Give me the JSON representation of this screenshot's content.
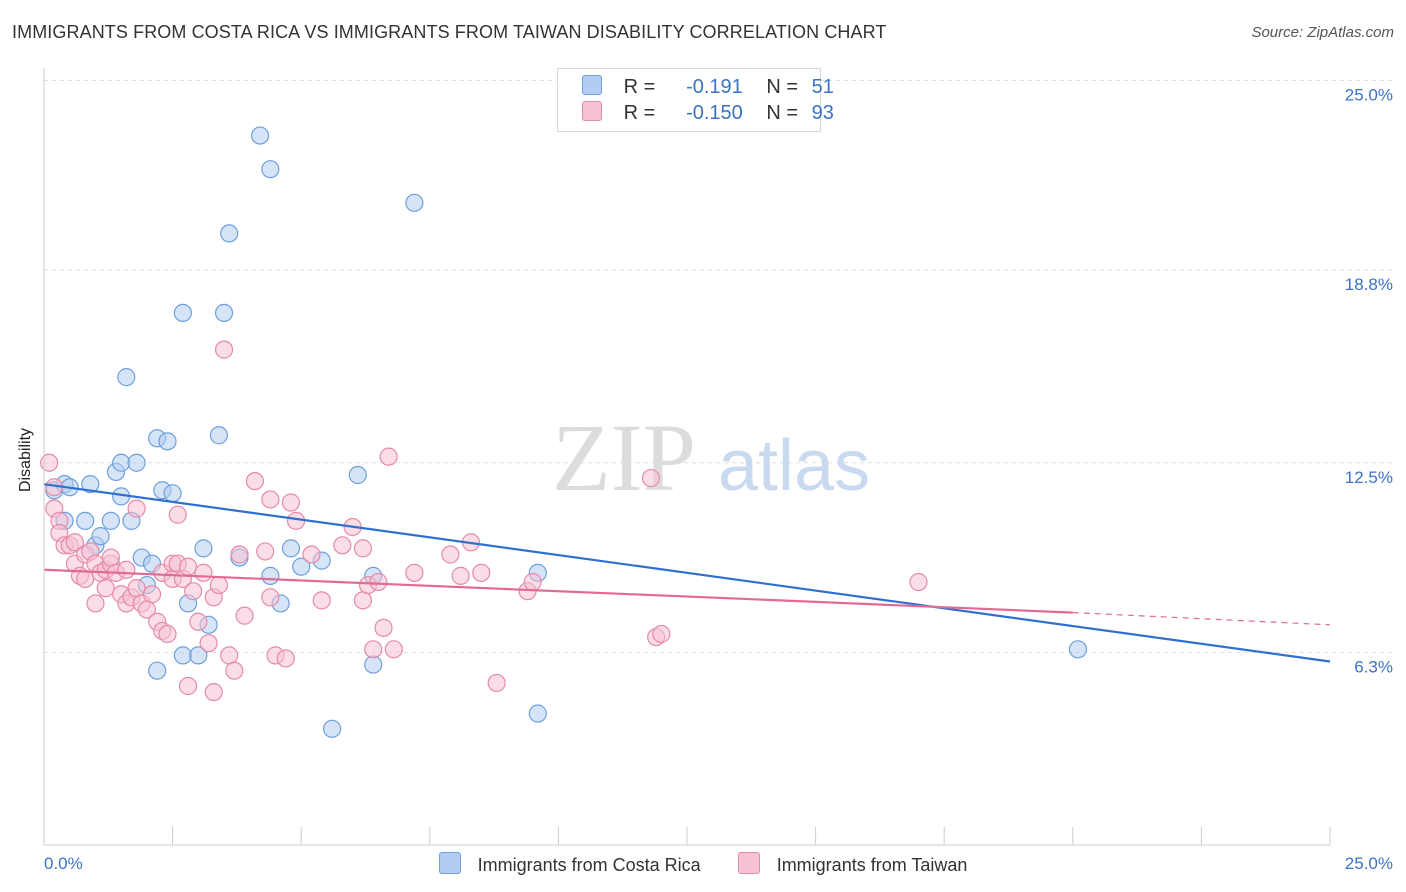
{
  "title": "IMMIGRANTS FROM COSTA RICA VS IMMIGRANTS FROM TAIWAN DISABILITY CORRELATION CHART",
  "source": "Source: ZipAtlas.com",
  "watermark": {
    "zip": "ZIP",
    "atlas": "atlas"
  },
  "legend": {
    "rows": [
      {
        "r_label": "R =",
        "r_value": "-0.191",
        "n_label": "N =",
        "n_value": "51"
      },
      {
        "r_label": "R =",
        "r_value": "-0.150",
        "n_label": "N =",
        "n_value": "93"
      }
    ]
  },
  "colors": {
    "blue_fill": "#b3cdf1",
    "blue_stroke": "#6f9fdc",
    "blue_line": "#2f6fd0",
    "pink_fill": "#f6c1d3",
    "pink_stroke": "#e58aab",
    "pink_line": "#e26b96",
    "tick_text": "#3b73c4",
    "grid": "#dddddd"
  },
  "chart_data": {
    "type": "scatter",
    "title": "IMMIGRANTS FROM COSTA RICA VS IMMIGRANTS FROM TAIWAN DISABILITY CORRELATION CHART",
    "xlabel": "",
    "ylabel": "Disability",
    "xlim": [
      0,
      25
    ],
    "ylim": [
      0,
      25
    ],
    "x_tick_labels": [
      "0.0%",
      "25.0%"
    ],
    "y_tick_labels": [
      "6.3%",
      "12.5%",
      "18.8%",
      "25.0%"
    ],
    "y_ticks": [
      6.3,
      12.5,
      18.8,
      25.0
    ],
    "grid": true,
    "legend_position": "bottom",
    "series": [
      {
        "name": "Immigrants from Costa Rica",
        "color": "#6f9fdc",
        "trend": {
          "x": [
            0,
            25
          ],
          "y": [
            11.8,
            6.0
          ]
        },
        "points": [
          [
            0.2,
            11.6
          ],
          [
            0.4,
            11.8
          ],
          [
            0.5,
            11.7
          ],
          [
            0.4,
            10.6
          ],
          [
            0.8,
            10.6
          ],
          [
            0.9,
            11.8
          ],
          [
            1.0,
            9.8
          ],
          [
            1.1,
            10.1
          ],
          [
            1.3,
            10.6
          ],
          [
            1.4,
            12.2
          ],
          [
            1.5,
            12.5
          ],
          [
            1.5,
            11.4
          ],
          [
            1.6,
            15.3
          ],
          [
            1.7,
            10.6
          ],
          [
            1.8,
            12.5
          ],
          [
            1.9,
            9.4
          ],
          [
            2.0,
            8.5
          ],
          [
            2.1,
            9.2
          ],
          [
            2.2,
            13.3
          ],
          [
            2.2,
            5.7
          ],
          [
            2.3,
            11.6
          ],
          [
            2.4,
            13.2
          ],
          [
            2.5,
            11.5
          ],
          [
            2.7,
            6.2
          ],
          [
            2.7,
            17.4
          ],
          [
            2.8,
            7.9
          ],
          [
            3.0,
            6.2
          ],
          [
            3.1,
            9.7
          ],
          [
            3.2,
            7.2
          ],
          [
            3.4,
            13.4
          ],
          [
            3.5,
            17.4
          ],
          [
            3.6,
            20.0
          ],
          [
            3.8,
            9.4
          ],
          [
            4.2,
            23.2
          ],
          [
            4.4,
            22.1
          ],
          [
            4.4,
            8.8
          ],
          [
            4.6,
            7.9
          ],
          [
            4.8,
            9.7
          ],
          [
            5.0,
            9.1
          ],
          [
            5.4,
            9.3
          ],
          [
            5.6,
            3.8
          ],
          [
            6.1,
            12.1
          ],
          [
            6.4,
            8.8
          ],
          [
            6.4,
            5.9
          ],
          [
            7.2,
            21.0
          ],
          [
            9.6,
            8.9
          ],
          [
            9.6,
            4.3
          ],
          [
            20.1,
            6.4
          ]
        ]
      },
      {
        "name": "Immigrants from Taiwan",
        "color": "#e58aab",
        "trend": {
          "x": [
            0,
            20
          ],
          "y": [
            9.0,
            7.6
          ]
        },
        "trend_dashed": {
          "x": [
            20,
            25
          ],
          "y": [
            7.6,
            7.2
          ]
        },
        "points": [
          [
            0.1,
            12.5
          ],
          [
            0.2,
            11.7
          ],
          [
            0.2,
            11.0
          ],
          [
            0.3,
            10.6
          ],
          [
            0.3,
            10.2
          ],
          [
            0.4,
            9.8
          ],
          [
            0.5,
            9.8
          ],
          [
            0.6,
            9.9
          ],
          [
            0.6,
            9.2
          ],
          [
            0.7,
            8.8
          ],
          [
            0.8,
            9.5
          ],
          [
            0.8,
            8.7
          ],
          [
            0.9,
            9.6
          ],
          [
            1.0,
            7.9
          ],
          [
            1.0,
            9.2
          ],
          [
            1.1,
            8.9
          ],
          [
            1.2,
            9.0
          ],
          [
            1.2,
            8.4
          ],
          [
            1.3,
            9.2
          ],
          [
            1.3,
            9.4
          ],
          [
            1.4,
            8.9
          ],
          [
            1.5,
            8.2
          ],
          [
            1.6,
            7.9
          ],
          [
            1.6,
            9.0
          ],
          [
            1.7,
            8.1
          ],
          [
            1.8,
            8.4
          ],
          [
            1.8,
            11.0
          ],
          [
            1.9,
            7.9
          ],
          [
            2.0,
            7.7
          ],
          [
            2.1,
            8.2
          ],
          [
            2.2,
            7.3
          ],
          [
            2.3,
            7.0
          ],
          [
            2.3,
            8.9
          ],
          [
            2.4,
            6.9
          ],
          [
            2.5,
            9.2
          ],
          [
            2.5,
            8.7
          ],
          [
            2.6,
            9.2
          ],
          [
            2.6,
            10.8
          ],
          [
            2.7,
            8.7
          ],
          [
            2.8,
            5.2
          ],
          [
            2.8,
            9.1
          ],
          [
            2.9,
            8.3
          ],
          [
            3.0,
            7.3
          ],
          [
            3.1,
            8.9
          ],
          [
            3.2,
            6.6
          ],
          [
            3.3,
            5.0
          ],
          [
            3.3,
            8.1
          ],
          [
            3.4,
            8.5
          ],
          [
            3.5,
            16.2
          ],
          [
            3.6,
            6.2
          ],
          [
            3.7,
            5.7
          ],
          [
            3.8,
            9.5
          ],
          [
            3.9,
            7.5
          ],
          [
            4.1,
            11.9
          ],
          [
            4.3,
            9.6
          ],
          [
            4.4,
            11.3
          ],
          [
            4.4,
            8.1
          ],
          [
            4.5,
            6.2
          ],
          [
            4.7,
            6.1
          ],
          [
            4.8,
            11.2
          ],
          [
            4.9,
            10.6
          ],
          [
            5.2,
            9.5
          ],
          [
            5.4,
            8.0
          ],
          [
            5.8,
            9.8
          ],
          [
            6.0,
            10.4
          ],
          [
            6.2,
            9.7
          ],
          [
            6.2,
            8.0
          ],
          [
            6.3,
            8.5
          ],
          [
            6.4,
            6.4
          ],
          [
            6.5,
            8.6
          ],
          [
            6.6,
            7.1
          ],
          [
            6.7,
            12.7
          ],
          [
            6.8,
            6.4
          ],
          [
            7.2,
            8.9
          ],
          [
            7.9,
            9.5
          ],
          [
            8.1,
            8.8
          ],
          [
            8.3,
            9.9
          ],
          [
            8.5,
            8.9
          ],
          [
            8.8,
            5.3
          ],
          [
            9.4,
            8.3
          ],
          [
            9.5,
            8.6
          ],
          [
            11.9,
            6.8
          ],
          [
            12.0,
            6.9
          ],
          [
            11.8,
            12.0
          ],
          [
            17.0,
            8.6
          ]
        ]
      }
    ]
  }
}
